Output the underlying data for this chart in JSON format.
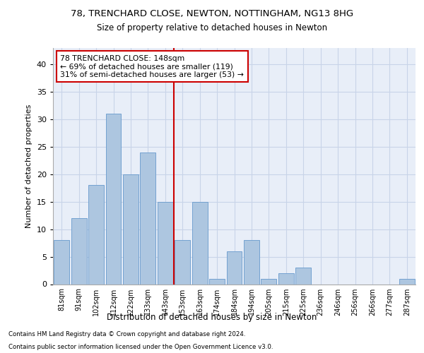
{
  "title": "78, TRENCHARD CLOSE, NEWTON, NOTTINGHAM, NG13 8HG",
  "subtitle": "Size of property relative to detached houses in Newton",
  "xlabel": "Distribution of detached houses by size in Newton",
  "ylabel": "Number of detached properties",
  "categories": [
    "81sqm",
    "91sqm",
    "102sqm",
    "112sqm",
    "122sqm",
    "133sqm",
    "143sqm",
    "153sqm",
    "163sqm",
    "174sqm",
    "184sqm",
    "194sqm",
    "205sqm",
    "215sqm",
    "225sqm",
    "236sqm",
    "246sqm",
    "256sqm",
    "266sqm",
    "277sqm",
    "287sqm"
  ],
  "values": [
    8,
    12,
    18,
    31,
    20,
    24,
    15,
    8,
    15,
    1,
    6,
    8,
    1,
    2,
    3,
    0,
    0,
    0,
    0,
    0,
    1
  ],
  "bar_color": "#adc6e0",
  "bar_edge_color": "#6699cc",
  "vline_color": "#cc0000",
  "annotation_text": "78 TRENCHARD CLOSE: 148sqm\n← 69% of detached houses are smaller (119)\n31% of semi-detached houses are larger (53) →",
  "annotation_box_color": "#ffffff",
  "annotation_box_edge_color": "#cc0000",
  "ylim": [
    0,
    43
  ],
  "yticks": [
    0,
    5,
    10,
    15,
    20,
    25,
    30,
    35,
    40
  ],
  "background_color": "#e8eef8",
  "grid_color": "#c8d4e8",
  "footer_line1": "Contains HM Land Registry data © Crown copyright and database right 2024.",
  "footer_line2": "Contains public sector information licensed under the Open Government Licence v3.0."
}
